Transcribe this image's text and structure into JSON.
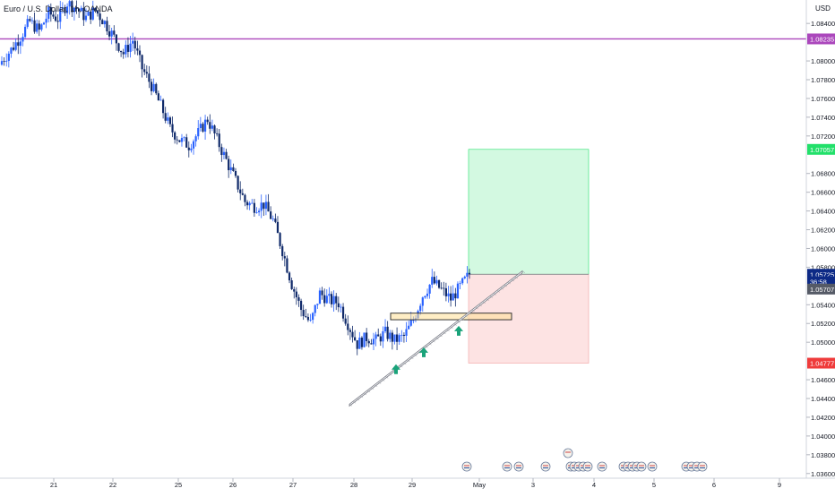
{
  "header": {
    "symbol": "Euro / U.S. Dollar, 1h, OANDA"
  },
  "price_axis": {
    "currency": "USD",
    "ticks": [
      "1.08400",
      "1.08000",
      "1.07800",
      "1.07600",
      "1.07400",
      "1.07200",
      "1.06800",
      "1.06600",
      "1.06400",
      "1.06200",
      "1.06000",
      "1.05800",
      "1.05400",
      "1.05200",
      "1.05000",
      "1.04600",
      "1.04400",
      "1.04200",
      "1.04000",
      "1.03800",
      "1.03600"
    ],
    "labels": [
      {
        "text": "1.08235",
        "value": 1.08235,
        "color": "#ab47bc"
      },
      {
        "text": "1.07057",
        "value": 1.07057,
        "color": "#22e06a"
      },
      {
        "text": "1.05725",
        "value": 1.05725,
        "color": "#0d2a86"
      },
      {
        "text": "36:58",
        "value": 1.05645,
        "color": "#0d2a86"
      },
      {
        "text": "1.05707",
        "value": 1.05567,
        "color": "#555a66"
      },
      {
        "text": "1.04777",
        "value": 1.04777,
        "color": "#ef3b3b"
      }
    ]
  },
  "time_axis": {
    "ticks": [
      "21",
      "22",
      "25",
      "26",
      "27",
      "28",
      "29",
      "May",
      "3",
      "4",
      "5",
      "6",
      "9"
    ]
  },
  "chart_data": {
    "type": "candlestick",
    "symbol": "Euro / U.S. Dollar, 1h, OANDA",
    "ylim": [
      1.0355,
      1.0865
    ],
    "close_path": [
      [
        0,
        1.08
      ],
      [
        4,
        1.0812
      ],
      [
        8,
        1.0826
      ],
      [
        12,
        1.0842
      ],
      [
        16,
        1.0832
      ],
      [
        20,
        1.0851
      ],
      [
        24,
        1.0845
      ],
      [
        28,
        1.0862
      ],
      [
        32,
        1.0856
      ],
      [
        36,
        1.0846
      ],
      [
        40,
        1.0854
      ],
      [
        44,
        1.0841
      ],
      [
        48,
        1.0825
      ],
      [
        52,
        1.0808
      ],
      [
        56,
        1.0822
      ],
      [
        60,
        1.0792
      ],
      [
        64,
        1.0774
      ],
      [
        68,
        1.0752
      ],
      [
        72,
        1.0728
      ],
      [
        76,
        1.0716
      ],
      [
        80,
        1.071
      ],
      [
        84,
        1.0723
      ],
      [
        88,
        1.0738
      ],
      [
        92,
        1.0716
      ],
      [
        96,
        1.0694
      ],
      [
        100,
        1.0672
      ],
      [
        104,
        1.065
      ],
      [
        108,
        1.0645
      ],
      [
        112,
        1.0647
      ],
      [
        116,
        1.063
      ],
      [
        120,
        1.0598
      ],
      [
        124,
        1.0562
      ],
      [
        128,
        1.0535
      ],
      [
        132,
        1.052
      ],
      [
        136,
        1.0552
      ],
      [
        140,
        1.0545
      ],
      [
        144,
        1.0542
      ],
      [
        148,
        1.052
      ],
      [
        152,
        1.0498
      ],
      [
        156,
        1.0505
      ],
      [
        160,
        1.0502
      ],
      [
        164,
        1.051
      ],
      [
        168,
        1.0502
      ],
      [
        172,
        1.0506
      ],
      [
        176,
        1.0524
      ],
      [
        180,
        1.055
      ],
      [
        184,
        1.0565
      ],
      [
        188,
        1.0556
      ],
      [
        192,
        1.0546
      ],
      [
        196,
        1.0559
      ],
      [
        200,
        1.05725
      ]
    ],
    "series": [
      {
        "name": "Horizontal Line",
        "type": "horizontal-line",
        "value": 1.08235,
        "color": "#ab47bc"
      },
      {
        "name": "Long Position",
        "type": "position",
        "entry": 1.05725,
        "target": 1.07057,
        "stop": 1.04777
      },
      {
        "name": "Trend Line",
        "type": "trendline",
        "from": [
          1.0434,
          1.0432
        ],
        "to": [
          1.0576,
          1.0574
        ]
      },
      {
        "name": "Support Zone",
        "type": "rectangle",
        "top": 1.0531,
        "bottom": 1.0524
      }
    ],
    "markers": [
      {
        "type": "arrow-up",
        "color": "#1aa37a",
        "value": 1.0466
      },
      {
        "type": "arrow-up",
        "color": "#1aa37a",
        "value": 1.0484
      },
      {
        "type": "arrow-up",
        "color": "#1aa37a",
        "value": 1.0507
      }
    ],
    "candle_up_color": "#2962ff",
    "candle_down_color": "#102a6a",
    "grid": false
  }
}
